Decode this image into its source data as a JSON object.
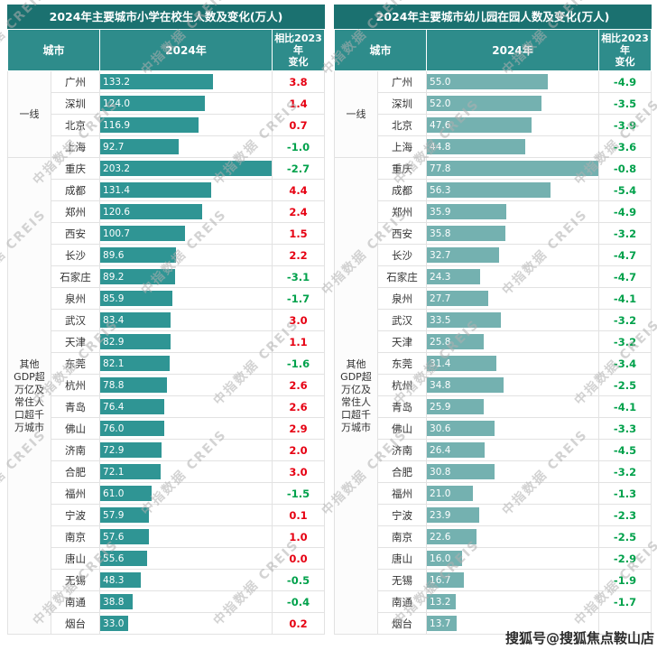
{
  "colors": {
    "title_bg": "#1b7170",
    "header_bg": "#2e8c8b",
    "positive": "#e60012",
    "negative": "#00a14b",
    "watermark": "#b0b0b0"
  },
  "watermarks": {
    "diagonal": "中指数据 CREIS",
    "bottom_right": "搜狐号@搜狐焦点鞍山店"
  },
  "chart_data": [
    {
      "type": "bar",
      "title": "2024年主要城市小学在校生人数及变化(万人)",
      "columns": {
        "city": "城市",
        "year": "2024年",
        "change_line1": "相比2023年",
        "change_line2": "变化"
      },
      "xlim": [
        0,
        203.2
      ],
      "bar_color": "#2f9594",
      "groups": [
        {
          "label": "一线",
          "rows": [
            {
              "city": "广州",
              "value": "133.2",
              "change": "3.8"
            },
            {
              "city": "深圳",
              "value": "124.0",
              "change": "1.4"
            },
            {
              "city": "北京",
              "value": "116.9",
              "change": "0.7"
            },
            {
              "city": "上海",
              "value": "92.7",
              "change": "-1.0"
            }
          ]
        },
        {
          "label": "其他GDP超万亿及常住人口超千万城市",
          "rows": [
            {
              "city": "重庆",
              "value": "203.2",
              "change": "-2.7"
            },
            {
              "city": "成都",
              "value": "131.4",
              "change": "4.4"
            },
            {
              "city": "郑州",
              "value": "120.6",
              "change": "2.4"
            },
            {
              "city": "西安",
              "value": "100.7",
              "change": "1.5"
            },
            {
              "city": "长沙",
              "value": "89.6",
              "change": "2.2"
            },
            {
              "city": "石家庄",
              "value": "89.2",
              "change": "-3.1"
            },
            {
              "city": "泉州",
              "value": "85.9",
              "change": "-1.7"
            },
            {
              "city": "武汉",
              "value": "83.4",
              "change": "3.0"
            },
            {
              "city": "天津",
              "value": "82.9",
              "change": "1.1"
            },
            {
              "city": "东莞",
              "value": "82.1",
              "change": "-1.6"
            },
            {
              "city": "杭州",
              "value": "78.8",
              "change": "2.6"
            },
            {
              "city": "青岛",
              "value": "76.4",
              "change": "2.6"
            },
            {
              "city": "佛山",
              "value": "76.0",
              "change": "2.9"
            },
            {
              "city": "济南",
              "value": "72.9",
              "change": "2.0"
            },
            {
              "city": "合肥",
              "value": "72.1",
              "change": "3.0"
            },
            {
              "city": "福州",
              "value": "61.0",
              "change": "-1.5"
            },
            {
              "city": "宁波",
              "value": "57.9",
              "change": "0.1"
            },
            {
              "city": "南京",
              "value": "57.6",
              "change": "1.0"
            },
            {
              "city": "唐山",
              "value": "55.6",
              "change": "0.0"
            },
            {
              "city": "无锡",
              "value": "48.3",
              "change": "-0.5"
            },
            {
              "city": "南通",
              "value": "38.8",
              "change": "-0.4"
            },
            {
              "city": "烟台",
              "value": "33.0",
              "change": "0.2"
            }
          ]
        }
      ]
    },
    {
      "type": "bar",
      "title": "2024年主要城市幼儿园在园人数及变化(万人)",
      "columns": {
        "city": "城市",
        "year": "2024年",
        "change_line1": "相比2023年",
        "change_line2": "变化"
      },
      "xlim": [
        0,
        77.8
      ],
      "bar_color": "#74b1b0",
      "groups": [
        {
          "label": "一线",
          "rows": [
            {
              "city": "广州",
              "value": "55.0",
              "change": "-4.9"
            },
            {
              "city": "深圳",
              "value": "52.0",
              "change": "-3.5"
            },
            {
              "city": "北京",
              "value": "47.6",
              "change": "-3.9"
            },
            {
              "city": "上海",
              "value": "44.8",
              "change": "-3.6"
            }
          ]
        },
        {
          "label": "其他GDP超万亿及常住人口超千万城市",
          "rows": [
            {
              "city": "重庆",
              "value": "77.8",
              "change": "-0.8"
            },
            {
              "city": "成都",
              "value": "56.3",
              "change": "-5.4"
            },
            {
              "city": "郑州",
              "value": "35.9",
              "change": "-4.9"
            },
            {
              "city": "西安",
              "value": "35.8",
              "change": "-3.2"
            },
            {
              "city": "长沙",
              "value": "32.7",
              "change": "-4.7"
            },
            {
              "city": "石家庄",
              "value": "24.3",
              "change": "-4.7"
            },
            {
              "city": "泉州",
              "value": "27.7",
              "change": "-4.1"
            },
            {
              "city": "武汉",
              "value": "33.5",
              "change": "-3.2"
            },
            {
              "city": "天津",
              "value": "25.8",
              "change": "-3.2"
            },
            {
              "city": "东莞",
              "value": "31.4",
              "change": "-3.4"
            },
            {
              "city": "杭州",
              "value": "34.8",
              "change": "-2.5"
            },
            {
              "city": "青岛",
              "value": "25.9",
              "change": "-4.1"
            },
            {
              "city": "佛山",
              "value": "30.6",
              "change": "-3.3"
            },
            {
              "city": "济南",
              "value": "26.4",
              "change": "-4.5"
            },
            {
              "city": "合肥",
              "value": "30.8",
              "change": "-3.2"
            },
            {
              "city": "福州",
              "value": "21.0",
              "change": "-1.3"
            },
            {
              "city": "宁波",
              "value": "23.9",
              "change": "-2.3"
            },
            {
              "city": "南京",
              "value": "22.6",
              "change": "-2.5"
            },
            {
              "city": "唐山",
              "value": "16.0",
              "change": "-2.9"
            },
            {
              "city": "无锡",
              "value": "16.7",
              "change": "-1.9"
            },
            {
              "city": "南通",
              "value": "13.2",
              "change": "-1.7"
            },
            {
              "city": "烟台",
              "value": "13.7",
              "change": ""
            }
          ]
        }
      ]
    }
  ]
}
